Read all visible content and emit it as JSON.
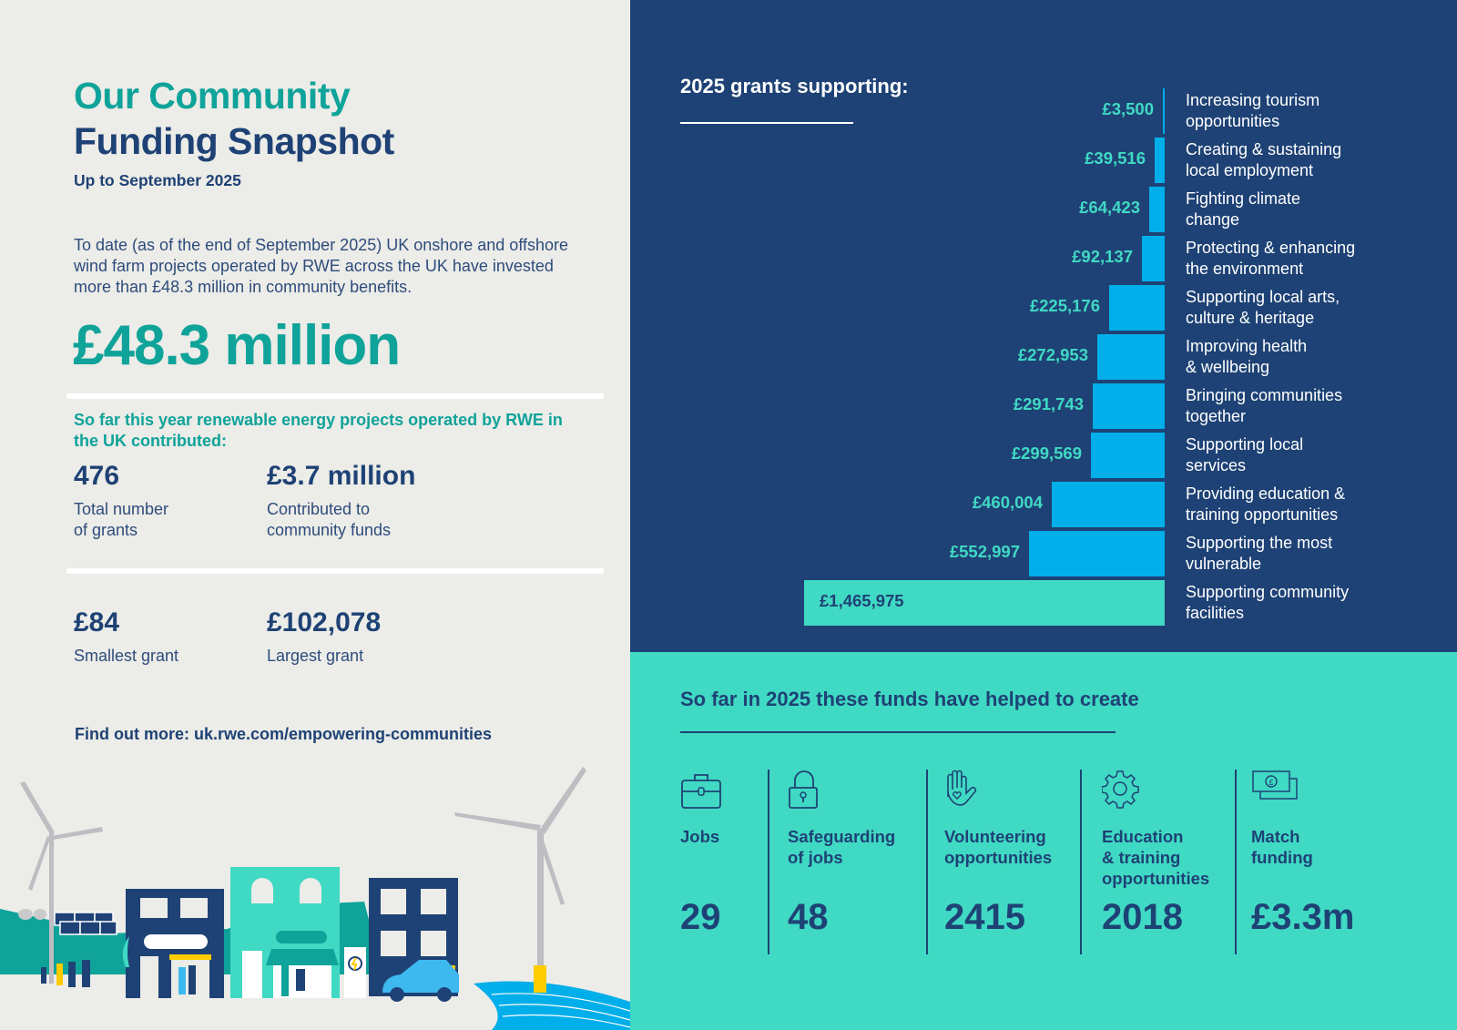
{
  "left": {
    "title_line1": "Our Community",
    "title_line2": "Funding Snapshot",
    "subtitle": "Up to September 2025",
    "intro": "To date (as of the end of September 2025) UK onshore and offshore wind farm projects operated by RWE across the UK have invested more than £48.3 million in community benefits.",
    "big_amount": "£48.3 million",
    "year_heading": "So far this year renewable energy projects operated by RWE in the UK contributed:",
    "stats": [
      {
        "value": "476",
        "label_line1": "Total number",
        "label_line2": "of grants"
      },
      {
        "value": "£3.7 million",
        "label_line1": "Contributed to",
        "label_line2": "community funds"
      },
      {
        "value": "£84",
        "label_line1": "Smallest grant",
        "label_line2": ""
      },
      {
        "value": "£102,078",
        "label_line1": "Largest grant",
        "label_line2": ""
      }
    ],
    "find_more": "Find out more: uk.rwe.com/empowering-communities"
  },
  "chart_data": {
    "type": "bar",
    "orientation": "horizontal",
    "title": "2025 grants supporting:",
    "categories": [
      "Increasing tourism opportunities",
      "Creating & sustaining local employment",
      "Fighting climate change",
      "Protecting & enhancing the environment",
      "Supporting local arts, culture & heritage",
      "Improving health & wellbeing",
      "Bringing communities together",
      "Supporting local services",
      "Providing education & training opportunities",
      "Supporting the most vulnerable",
      "Supporting community facilities"
    ],
    "values": [
      3500,
      39516,
      64423,
      92137,
      225176,
      272953,
      291743,
      299569,
      460004,
      552997,
      1465975
    ],
    "value_labels": [
      "£3,500",
      "£39,516",
      "£64,423",
      "£92,137",
      "£225,176",
      "£272,953",
      "£291,743",
      "£299,569",
      "£460,004",
      "£552,997",
      "£1,465,975"
    ],
    "label_lines": [
      [
        "Increasing tourism",
        "opportunities"
      ],
      [
        "Creating & sustaining",
        "local employment"
      ],
      [
        "Fighting climate",
        "change"
      ],
      [
        "Protecting & enhancing",
        "the environment"
      ],
      [
        "Supporting local arts,",
        "culture & heritage"
      ],
      [
        "Improving health",
        "& wellbeing"
      ],
      [
        "Bringing communities",
        "together"
      ],
      [
        "Supporting local",
        "services"
      ],
      [
        "Providing education &",
        "training opportunities"
      ],
      [
        "Supporting the most",
        "vulnerable"
      ],
      [
        "Supporting community",
        "facilities"
      ]
    ],
    "unit": "GBP",
    "xlabel": "",
    "ylabel": "",
    "grid": false,
    "legend": false,
    "colors": {
      "bar": "#00AEEA",
      "highlight_bar": "#40D9C4",
      "value_text": "#40D9C4"
    }
  },
  "impact": {
    "title": "So far in 2025 these funds have helped to create",
    "items": [
      {
        "icon": "briefcase-icon",
        "label_lines": [
          "Jobs"
        ],
        "value": "29"
      },
      {
        "icon": "padlock-icon",
        "label_lines": [
          "Safeguarding",
          "of jobs"
        ],
        "value": "48"
      },
      {
        "icon": "hand-heart-icon",
        "label_lines": [
          "Volunteering",
          "opportunities"
        ],
        "value": "2415"
      },
      {
        "icon": "gear-icon",
        "label_lines": [
          "Education",
          "& training",
          "opportunities"
        ],
        "value": "2018"
      },
      {
        "icon": "banknotes-icon",
        "label_lines": [
          "Match",
          "funding"
        ],
        "value": "£3.3m"
      }
    ]
  },
  "colors": {
    "navy": "#1E4275",
    "teal": "#0FA39A",
    "aqua": "#40D9C4",
    "sky": "#00AEEA",
    "paper": "#ECECE8"
  }
}
